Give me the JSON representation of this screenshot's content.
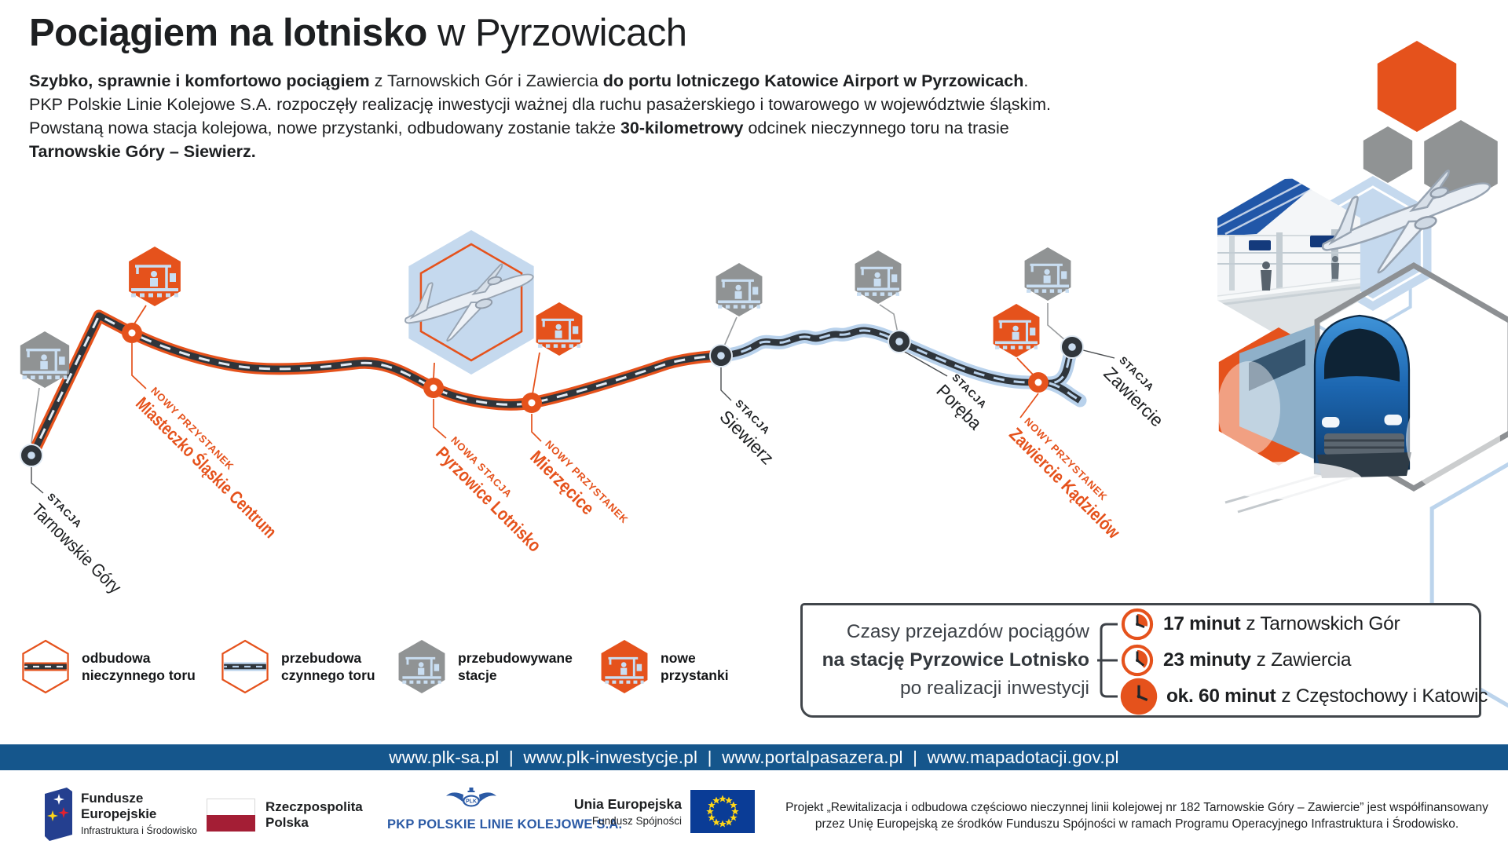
{
  "header": {
    "title_bold": "Pociągiem na lotnisko",
    "title_light": " w Pyrzowicach",
    "intro": [
      {
        "t": "Szybko, sprawnie i komfortowo pociągiem",
        "b": true
      },
      {
        "t": " z Tarnowskich Gór i Zawiercia "
      },
      {
        "t": "do portu lotniczego Katowice Airport w Pyrzowicach",
        "b": true
      },
      {
        "t": "."
      },
      {
        "br": true
      },
      {
        "t": "PKP Polskie Linie Kolejowe S.A. rozpoczęły realizację inwestycji ważnej dla ruchu pasażerskiego i towarowego w województwie śląskim."
      },
      {
        "br": true
      },
      {
        "t": "Powstaną nowa stacja kolejowa, nowe przystanki, odbudowany zostanie także "
      },
      {
        "t": "30-kilometrowy",
        "b": true
      },
      {
        "t": " odcinek nieczynnego toru na trasie"
      },
      {
        "br": true
      },
      {
        "t": "Tarnowskie Góry – Siewierz.",
        "b": true
      }
    ]
  },
  "map": {
    "stations": [
      {
        "kind": "STACJA",
        "name": "Tarnowskie Góry",
        "type": "przebudowywana stacja"
      },
      {
        "kind": "NOWY PRZYSTANEK",
        "name": "Miasteczko Śląskie Centrum",
        "type": "nowy przystanek"
      },
      {
        "kind": "NOWA STACJA",
        "name": "Pyrzowice Lotnisko",
        "type": "nowa stacja"
      },
      {
        "kind": "NOWY PRZYSTANEK",
        "name": "Mierzęcice",
        "type": "nowy przystanek"
      },
      {
        "kind": "STACJA",
        "name": "Siewierz",
        "type": "przebudowywana stacja"
      },
      {
        "kind": "STACJA",
        "name": "Poręba",
        "type": "przebudowywana stacja"
      },
      {
        "kind": "NOWY PRZYSTANEK",
        "name": "Zawiercie Kądzielów",
        "type": "nowy przystanek"
      },
      {
        "kind": "STACJA",
        "name": "Zawiercie",
        "type": "przebudowywana stacja"
      }
    ]
  },
  "legend": {
    "items": [
      {
        "line1": "odbudowa",
        "line2": "nieczynnego toru"
      },
      {
        "line1": "przebudowa",
        "line2": "czynnego toru"
      },
      {
        "line1": "przebudowywane",
        "line2": "stacje"
      },
      {
        "line1": "nowe",
        "line2": "przystanki"
      }
    ]
  },
  "times_box": {
    "line1": "Czasy przejazdów pociągów",
    "line2": "na stację Pyrzowice Lotnisko",
    "line3": "po realizacji inwestycji",
    "items": [
      {
        "time": "17 minut",
        "from": "z Tarnowskich Gór",
        "minutes": 17
      },
      {
        "time": "23 minuty",
        "from": "z Zawiercia",
        "minutes": 23
      },
      {
        "time": "ok. 60 minut",
        "from": "z Częstochowy i Katowic",
        "minutes": 60
      }
    ]
  },
  "footer": {
    "links": [
      "www.plk-sa.pl",
      "www.plk-inwestycje.pl",
      "www.portalpasazera.pl",
      "www.mapadotacji.gov.pl"
    ]
  },
  "logos": {
    "fundusze": {
      "line1": "Fundusze",
      "line2": "Europejskie",
      "line3": "Infrastruktura i Środowisko"
    },
    "rp": {
      "line1": "Rzeczpospolita",
      "line2": "Polska"
    },
    "pkp": {
      "emblem": "PLK",
      "label": "PKP POLSKIE LINIE KOLEJOWE S.A."
    },
    "ue": {
      "line1": "Unia Europejska",
      "line2": "Fundusz Spójności"
    }
  },
  "project_note": "Projekt „Rewitalizacja i odbudowa częściowo nieczynnej linii kolejowej nr 182 Tarnowskie Góry – Zawiercie” jest współfinansowany przez Unię Europejską ze środków Funduszu Spójności w ramach Programu Operacyjnego Infrastruktura i Środowisko.",
  "colors": {
    "accent_orange": "#e5521c",
    "track_dark": "#2f353b",
    "track_blue": "#b9d2ec",
    "hex_gray": "#909394",
    "footer_blue": "#15568c",
    "pkp_blue": "#2b5aa5",
    "eu_flag_blue": "#0a3c96",
    "pl_flag_red": "#a41e35"
  }
}
